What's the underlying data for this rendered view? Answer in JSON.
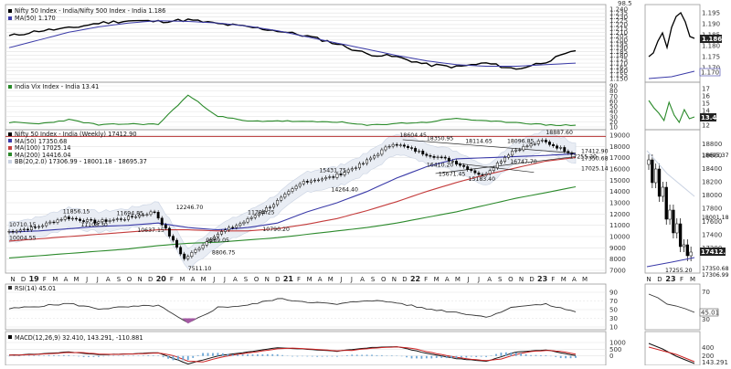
{
  "colors": {
    "price": "#000000",
    "ma50": "#3a3aa8",
    "ma100": "#c43c3c",
    "ma200": "#2c8a2c",
    "vix": "#2a8a2a",
    "bollinger": "#c9d2e2",
    "macd": "#111111",
    "signal": "#cc2222",
    "hist": "#6aa6d6",
    "resistance": "#b43030"
  },
  "ratio_pane": {
    "legend": [
      "Nifty 50 Index - India/Nifty 500 Index - India 1.186",
      "MA(50) 1.170"
    ],
    "ticks": [
      "1.240",
      "1.235",
      "1.230",
      "1.225",
      "1.220",
      "1.215",
      "1.210",
      "1.205",
      "1.200",
      "1.195",
      "1.190",
      "1.185",
      "1.180",
      "1.175",
      "1.170",
      "1.165",
      "1.160",
      "1.155",
      "1.150"
    ],
    "last": "1.186",
    "ma_last": "1.170",
    "zoom_ticks": [
      "1.195",
      "1.190",
      "1.185",
      "1.180",
      "1.175",
      "1.170"
    ],
    "zoom_last": "1.186",
    "zoom_ma_last": "1.170",
    "top_fragment": "98.5"
  },
  "vix_pane": {
    "legend": [
      "India Vix Index - India 13.41"
    ],
    "ticks": [
      "90",
      "80",
      "70",
      "60",
      "50",
      "40",
      "30",
      "20",
      "10"
    ],
    "last": "13.41",
    "zoom_ticks": [
      "17",
      "16",
      "15",
      "14",
      "13",
      "12"
    ],
    "zoom_last": "13.41"
  },
  "price_pane": {
    "legend": [
      "Nifty 50 Index - India (Weekly) 17412.90",
      "MA(50) 17350.68",
      "MA(100) 17025.14",
      "MA(200) 14416.04",
      "BB(20,2.0) 17306.99 - 18001.18 - 18695.37"
    ],
    "ticks": [
      "19000",
      "18000",
      "17000",
      "16000",
      "15000",
      "14000",
      "13000",
      "12000",
      "11000",
      "10000",
      "9000",
      "8000",
      "7000"
    ],
    "last_labels": [
      "17412.90",
      "17350.68",
      "17025.14"
    ],
    "zoom_ticks": [
      "18600",
      "18400",
      "18200",
      "18000",
      "17800",
      "17600",
      "17400",
      "17200"
    ],
    "zoom_top": "18800",
    "zoom_last_labels": [
      "18695.37",
      "18001.18",
      "17412.90",
      "17350.68",
      "17306.99"
    ],
    "zoom_low": "17255.20",
    "annotations": [
      "10710.15",
      "10004.55",
      "11856.15",
      "11108.30",
      "11694.85",
      "10637.15",
      "12246.70",
      "7511.10",
      "9889.05",
      "8806.75",
      "11794.25",
      "10790.20",
      "15431.75",
      "14264.40",
      "18604.45",
      "18350.95",
      "18114.65",
      "18096.85",
      "18887.60",
      "16410.20",
      "15671.45",
      "15183.40",
      "16747.70",
      "17255.20"
    ]
  },
  "x_axis": {
    "labels": [
      "N",
      "D",
      "19",
      "F",
      "M",
      "A",
      "M",
      "J",
      "J",
      "A",
      "S",
      "O",
      "N",
      "D",
      "20",
      "F",
      "M",
      "A",
      "M",
      "J",
      "J",
      "A",
      "S",
      "O",
      "N",
      "D",
      "21",
      "F",
      "M",
      "A",
      "M",
      "J",
      "J",
      "A",
      "S",
      "O",
      "N",
      "D",
      "22",
      "F",
      "M",
      "A",
      "M",
      "J",
      "J",
      "A",
      "S",
      "O",
      "N",
      "D",
      "23",
      "F",
      "M",
      "A",
      "M"
    ],
    "zoom_labels": [
      "N",
      "D",
      "23",
      "F",
      "M"
    ]
  },
  "rsi_pane": {
    "legend": [
      "RSI(14) 45.01"
    ],
    "ticks": [
      "90",
      "70",
      "50",
      "30",
      "10"
    ],
    "last": "45.01",
    "zoom_ticks": [
      "70",
      "30"
    ],
    "zoom_last": "45.01"
  },
  "macd_pane": {
    "legend": [
      "MACD(12,26,9) 32.410, 143.291, -110.881"
    ],
    "ticks": [
      "1000",
      "500",
      "0"
    ],
    "zoom_ticks": [
      "400",
      "200"
    ],
    "zoom_last": "143.291"
  },
  "chart_data": {
    "type": "line",
    "title": "Nifty 50 Index - India (Weekly) 17412.90",
    "x": [
      "2018-11",
      "2019-01",
      "2019-04",
      "2019-07",
      "2019-10",
      "2020-01",
      "2020-03",
      "2020-06",
      "2020-09",
      "2020-11",
      "2021-02",
      "2021-05",
      "2021-08",
      "2021-10",
      "2022-01",
      "2022-03",
      "2022-06",
      "2022-09",
      "2022-12",
      "2023-02"
    ],
    "series": [
      {
        "name": "Nifty 50 Index - India (Weekly)",
        "values": [
          10400,
          10800,
          11700,
          11300,
          11600,
          12200,
          8000,
          10100,
          11300,
          12900,
          14900,
          15300,
          16500,
          18300,
          17400,
          16700,
          15400,
          17600,
          18500,
          17400
        ]
      },
      {
        "name": "MA(50)",
        "values": [
          10400,
          10500,
          10700,
          10900,
          11000,
          11200,
          10800,
          10600,
          10800,
          11200,
          12200,
          13000,
          14000,
          15200,
          16200,
          16900,
          17000,
          17100,
          17200,
          17350
        ]
      },
      {
        "name": "MA(100)",
        "values": [
          9600,
          9800,
          10000,
          10200,
          10400,
          10600,
          10600,
          10500,
          10500,
          10700,
          11100,
          11600,
          12300,
          13100,
          14000,
          14800,
          15500,
          16100,
          16700,
          17025
        ]
      },
      {
        "name": "MA(200)",
        "values": [
          8100,
          8300,
          8500,
          8700,
          8900,
          9200,
          9400,
          9500,
          9700,
          9900,
          10200,
          10500,
          10800,
          11200,
          11700,
          12200,
          12800,
          13400,
          13900,
          14416
        ]
      }
    ],
    "ylim": [
      7000,
      19000
    ],
    "ratio_series": {
      "name": "Nifty 50 Index - India/Nifty 500 Index - India",
      "values": [
        1.205,
        1.212,
        1.215,
        1.222,
        1.225,
        1.224,
        1.226,
        1.221,
        1.217,
        1.212,
        1.205,
        1.195,
        1.182,
        1.178,
        1.168,
        1.165,
        1.17,
        1.162,
        1.172,
        1.186
      ]
    },
    "vix_series": {
      "name": "India Vix Index - India",
      "values": [
        19,
        16,
        24,
        14,
        16,
        15,
        72,
        31,
        21,
        22,
        20,
        20,
        13,
        17,
        19,
        27,
        21,
        19,
        14,
        13.4
      ]
    },
    "rsi_series": {
      "name": "RSI(14)",
      "values": [
        52,
        58,
        64,
        52,
        56,
        60,
        18,
        55,
        60,
        75,
        68,
        62,
        72,
        66,
        52,
        44,
        33,
        58,
        62,
        45
      ]
    },
    "macd_series": {
      "name": "MACD(12,26,9)",
      "values": [
        50,
        150,
        300,
        100,
        150,
        250,
        -600,
        0,
        300,
        600,
        500,
        350,
        600,
        700,
        200,
        -200,
        -400,
        300,
        450,
        32
      ]
    }
  }
}
